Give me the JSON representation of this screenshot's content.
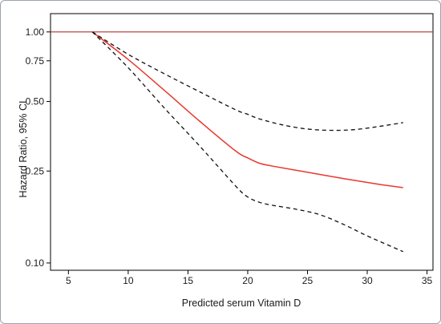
{
  "chart_data": {
    "type": "line",
    "xlabel": "Predicted serum Vitamin D",
    "ylabel": "Hazard Ratio, 95% CI",
    "xlim": [
      3.5,
      35.5
    ],
    "ylim": [
      0.093,
      1.2
    ],
    "y_scale": "log",
    "x_ticks": [
      5,
      10,
      15,
      20,
      25,
      30,
      35
    ],
    "y_ticks": [
      0.1,
      0.25,
      0.5,
      0.75,
      1.0
    ],
    "y_tick_labels": [
      "0.10",
      "0.25",
      "0.50",
      "0.75",
      "1.00"
    ],
    "grid": false,
    "reference_line": {
      "y": 1.0,
      "color": "#b03030"
    },
    "series": [
      {
        "style": "solid",
        "color": "#e8392f",
        "x": [
          7,
          10,
          13,
          16,
          19,
          20,
          21,
          22,
          25,
          28,
          31,
          33
        ],
        "y": [
          1.0,
          0.76,
          0.56,
          0.41,
          0.305,
          0.285,
          0.27,
          0.263,
          0.247,
          0.232,
          0.219,
          0.212
        ]
      },
      {
        "style": "dashed",
        "color": "#111111",
        "x": [
          7,
          10,
          13,
          16,
          19,
          20,
          21,
          23,
          25,
          27,
          29,
          31,
          33
        ],
        "y": [
          1.0,
          0.8,
          0.66,
          0.55,
          0.46,
          0.44,
          0.42,
          0.395,
          0.38,
          0.375,
          0.378,
          0.39,
          0.405
        ]
      },
      {
        "style": "dashed",
        "color": "#111111",
        "x": [
          7,
          10,
          13,
          16,
          19,
          20,
          21,
          22,
          24,
          26,
          28,
          30,
          33
        ],
        "y": [
          1.0,
          0.7,
          0.47,
          0.32,
          0.215,
          0.193,
          0.183,
          0.178,
          0.171,
          0.162,
          0.147,
          0.131,
          0.112
        ]
      }
    ]
  }
}
